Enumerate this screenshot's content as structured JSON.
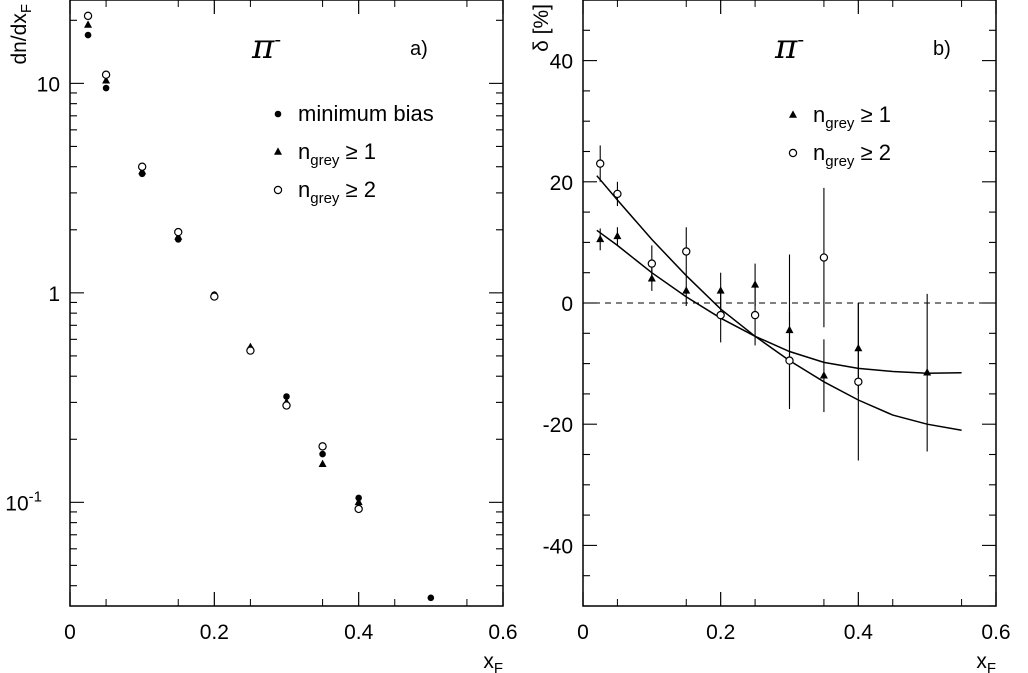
{
  "chart_data": [
    {
      "type": "scatter",
      "panel_tag": "a)",
      "particle": "π",
      "particle_sup": "-",
      "ylabel": {
        "base": "dn/dx",
        "sub": "F"
      },
      "xlabel": {
        "base": "x",
        "sub": "F"
      },
      "yscale": "log",
      "xlim": [
        0,
        0.6
      ],
      "ylim": [
        0.032,
        25
      ],
      "xticks": [
        0,
        0.2,
        0.4,
        0.6
      ],
      "xtick_labels": [
        "0",
        "0.2",
        "0.4",
        "0.6"
      ],
      "yticks": [
        {
          "value": 10,
          "base": "10",
          "exp": ""
        },
        {
          "value": 1,
          "base": "1",
          "exp": ""
        },
        {
          "value": 0.1,
          "base": "10",
          "exp": "-1"
        }
      ],
      "legend_position": "top-right",
      "series": [
        {
          "name": {
            "base": "minimum bias",
            "sub": "",
            "rel": ""
          },
          "marker": "filled-circle",
          "x": [
            0.025,
            0.05,
            0.1,
            0.15,
            0.2,
            0.25,
            0.3,
            0.35,
            0.4,
            0.5
          ],
          "y": [
            17,
            9.5,
            3.7,
            1.8,
            0.98,
            0.54,
            0.32,
            0.17,
            0.105,
            0.035
          ]
        },
        {
          "name": {
            "base": "n",
            "sub": "grey",
            "rel": " ≥ 1"
          },
          "marker": "filled-triangle",
          "x": [
            0.025,
            0.05,
            0.1,
            0.15,
            0.2,
            0.25,
            0.3,
            0.35,
            0.4
          ],
          "y": [
            19,
            10.3,
            3.8,
            1.85,
            0.97,
            0.55,
            0.3,
            0.152,
            0.1
          ]
        },
        {
          "name": {
            "base": "n",
            "sub": "grey",
            "rel": " ≥ 2"
          },
          "marker": "open-circle",
          "x": [
            0.025,
            0.05,
            0.1,
            0.15,
            0.2,
            0.25,
            0.3,
            0.35,
            0.4
          ],
          "y": [
            21,
            11,
            4.0,
            1.95,
            0.96,
            0.53,
            0.29,
            0.185,
            0.093
          ]
        }
      ]
    },
    {
      "type": "scatter",
      "panel_tag": "b)",
      "particle": "π",
      "particle_sup": "-",
      "ylabel": {
        "base": "δ [%]",
        "sub": ""
      },
      "xlabel": {
        "base": "x",
        "sub": "F"
      },
      "xlim": [
        0,
        0.6
      ],
      "ylim": [
        -50,
        50
      ],
      "xticks": [
        0,
        0.2,
        0.4,
        0.6
      ],
      "xtick_labels": [
        "0",
        "0.2",
        "0.4",
        "0.6"
      ],
      "yticks": [
        40,
        20,
        0,
        -20,
        -40
      ],
      "ytick_labels": [
        "40",
        "20",
        "0",
        "-20",
        "-40"
      ],
      "reference_line": {
        "y": 0,
        "style": "dashed"
      },
      "legend_position": "top-right",
      "series": [
        {
          "name": {
            "base": "n",
            "sub": "grey",
            "rel": " ≥ 1"
          },
          "marker": "filled-triangle",
          "x": [
            0.025,
            0.05,
            0.1,
            0.15,
            0.2,
            0.25,
            0.3,
            0.35,
            0.4,
            0.5
          ],
          "y": [
            10.5,
            11,
            4,
            2,
            2,
            3,
            -4.5,
            -12,
            -7.5,
            -11.5
          ],
          "err": [
            1.8,
            1.5,
            2,
            2.5,
            3,
            3.5,
            12.5,
            6,
            7.5,
            13
          ]
        },
        {
          "name": {
            "base": "n",
            "sub": "grey",
            "rel": " ≥ 2"
          },
          "marker": "open-circle",
          "x": [
            0.025,
            0.05,
            0.1,
            0.15,
            0.2,
            0.25,
            0.3,
            0.35,
            0.4
          ],
          "y": [
            23,
            18,
            6.5,
            8.5,
            -2,
            -2,
            -9.5,
            7.5,
            -13
          ],
          "err": [
            3,
            2,
            3,
            4,
            4.5,
            5,
            8,
            11.5,
            13
          ]
        }
      ],
      "fit_curves": [
        {
          "x": [
            0.02,
            0.05,
            0.1,
            0.15,
            0.2,
            0.25,
            0.3,
            0.35,
            0.4,
            0.45,
            0.5,
            0.55
          ],
          "y": [
            12,
            9.5,
            5,
            1,
            -2.5,
            -5.5,
            -8,
            -9.8,
            -10.8,
            -11.3,
            -11.6,
            -11.5
          ]
        },
        {
          "x": [
            0.02,
            0.05,
            0.1,
            0.15,
            0.2,
            0.25,
            0.3,
            0.35,
            0.4,
            0.45,
            0.5,
            0.55
          ],
          "y": [
            21,
            17,
            10.5,
            4.5,
            -1,
            -5.5,
            -9.5,
            -13,
            -16,
            -18.5,
            -20,
            -21
          ]
        }
      ]
    }
  ]
}
